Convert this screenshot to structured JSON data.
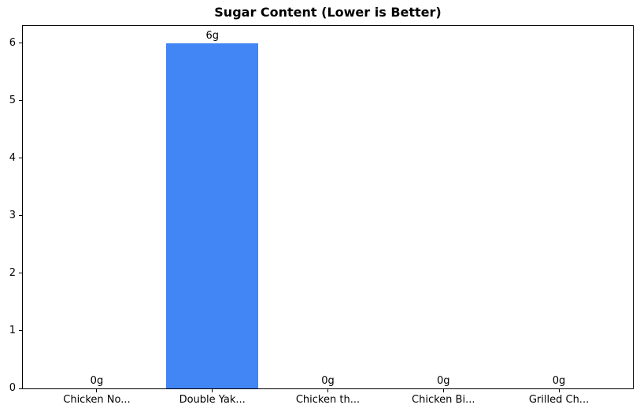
{
  "chart_data": {
    "type": "bar",
    "title": "Sugar Content (Lower is Better)",
    "categories": [
      "Chicken No...",
      "Double Yak...",
      "Chicken th...",
      "Chicken Bi...",
      "Grilled Ch..."
    ],
    "values": [
      0,
      6,
      0,
      0,
      0
    ],
    "bar_labels": [
      "0g",
      "6g",
      "0g",
      "0g",
      "0g"
    ],
    "yticks": [
      0,
      1,
      2,
      3,
      4,
      5,
      6
    ],
    "ylim": [
      0,
      6.3
    ],
    "xlabel": "",
    "ylabel": "",
    "grid": false,
    "legend": false,
    "bar_color": "#4285f4",
    "text_color": "#000000",
    "axis_color": "#000000",
    "background_color": "#ffffff"
  }
}
